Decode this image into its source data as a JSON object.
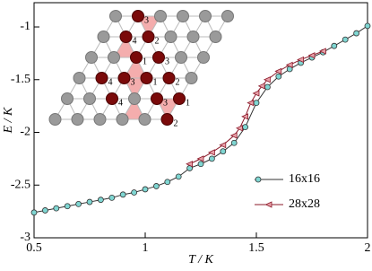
{
  "chart_data": {
    "type": "line",
    "xlabel": "T / K",
    "ylabel": "E / K",
    "xlim": [
      0.5,
      2
    ],
    "xticks": [
      0.5,
      1,
      1.5,
      2
    ],
    "ylim": [
      -3,
      -0.77
    ],
    "yticks": [
      -3,
      -2.5,
      -2,
      -1.5,
      -1
    ],
    "legend": "lower right",
    "series": [
      {
        "name": "16x16",
        "color": "#7fd6d2",
        "marker": "circle",
        "x": [
          0.5,
          0.55,
          0.6,
          0.65,
          0.7,
          0.75,
          0.8,
          0.85,
          0.9,
          0.95,
          1.0,
          1.05,
          1.1,
          1.15,
          1.2,
          1.25,
          1.3,
          1.35,
          1.4,
          1.45,
          1.5,
          1.55,
          1.6,
          1.65,
          1.7,
          1.75,
          1.8,
          1.85,
          1.9,
          1.95,
          2.0
        ],
        "values": [
          -2.76,
          -2.74,
          -2.72,
          -2.7,
          -2.68,
          -2.66,
          -2.64,
          -2.62,
          -2.59,
          -2.57,
          -2.54,
          -2.51,
          -2.47,
          -2.42,
          -2.34,
          -2.3,
          -2.25,
          -2.18,
          -2.1,
          -1.95,
          -1.72,
          -1.57,
          -1.47,
          -1.4,
          -1.34,
          -1.29,
          -1.24,
          -1.18,
          -1.12,
          -1.06,
          -0.99
        ]
      },
      {
        "name": "28x28",
        "color": "#e8a0a8",
        "marker": "triangle-left",
        "x": [
          1.2,
          1.25,
          1.3,
          1.35,
          1.4,
          1.425,
          1.45,
          1.475,
          1.5,
          1.525,
          1.55,
          1.6,
          1.65,
          1.7,
          1.75,
          1.8
        ],
        "values": [
          -2.3,
          -2.25,
          -2.19,
          -2.12,
          -2.03,
          -1.96,
          -1.85,
          -1.72,
          -1.63,
          -1.56,
          -1.5,
          -1.42,
          -1.36,
          -1.31,
          -1.27,
          -1.23
        ]
      }
    ],
    "annotations": [
      "3",
      "4",
      "2",
      "1",
      "3",
      "4",
      "3",
      "1",
      "2",
      "4",
      "3",
      "1",
      "2"
    ]
  }
}
